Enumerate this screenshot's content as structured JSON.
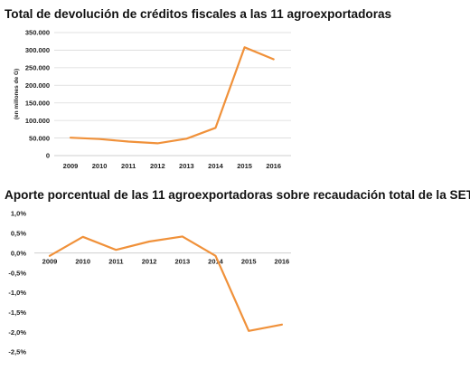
{
  "chart_data": [
    {
      "type": "line",
      "title": "Total de devolución de créditos fiscales a las 11 agroexportadoras",
      "ylabel": "(en millones de G)",
      "xlabel": "",
      "categories": [
        "2009",
        "2010",
        "2011",
        "2012",
        "2013",
        "2014",
        "2015",
        "2016"
      ],
      "yticks": [
        "0",
        "50.000",
        "100.000",
        "150.000",
        "200.000",
        "250.000",
        "300.000",
        "350.000"
      ],
      "ylim": [
        0,
        350000
      ],
      "grid": true,
      "series": [
        {
          "values": [
            51000,
            47000,
            40000,
            35000,
            48000,
            79000,
            308000,
            274000
          ],
          "color": "#f0913a"
        }
      ]
    },
    {
      "type": "line",
      "title": "Aporte porcentual de las 11 agroexportadoras sobre recaudación total de la SET",
      "ylabel": "",
      "xlabel": "",
      "categories": [
        "2009",
        "2010",
        "2011",
        "2012",
        "2013",
        "2014",
        "2015",
        "2016"
      ],
      "yticks": [
        "1,0%",
        "0,5%",
        "0,0%",
        "-0,5%",
        "-1,0%",
        "-1,5%",
        "-2,0%",
        "-2,5%"
      ],
      "ylim": [
        -2.5,
        1.0
      ],
      "grid": false,
      "series": [
        {
          "values": [
            -0.07,
            0.41,
            0.08,
            0.29,
            0.42,
            -0.07,
            -1.97,
            -1.81
          ],
          "color": "#f0913a"
        }
      ]
    }
  ]
}
